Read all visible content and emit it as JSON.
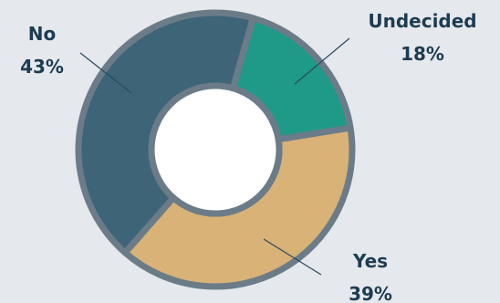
{
  "chart_data": {
    "type": "pie",
    "donut": true,
    "slices": [
      {
        "label": "Undecided",
        "value": 18,
        "value_label": "18%",
        "color": "#1f9a88"
      },
      {
        "label": "Yes",
        "value": 39,
        "value_label": "39%",
        "color": "#d9b277"
      },
      {
        "label": "No",
        "value": 43,
        "value_label": "43%",
        "color": "#3e6478"
      }
    ],
    "legend": "none",
    "title": "",
    "colors": {
      "background": "#e5e8ec",
      "outline": "#6b7c88",
      "hole": "#ffffff",
      "label_text": "#1d3c52"
    }
  }
}
